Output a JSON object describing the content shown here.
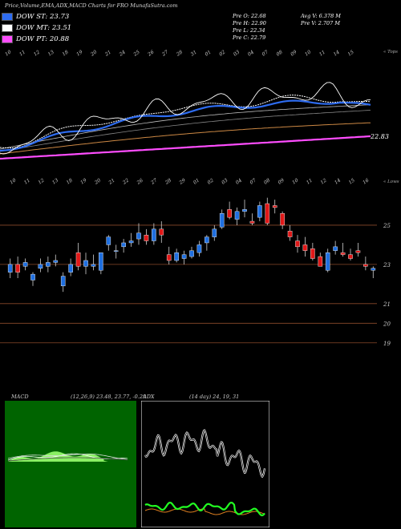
{
  "header": {
    "title": "Price,Volume,EMA,ADX,MACD Charts for FRO",
    "site": "MunafaSutra.com"
  },
  "legend": [
    {
      "label": "DOW ST: 23.73",
      "color": "#2e6cf0"
    },
    {
      "label": "DOW MT: 23.51",
      "color": "#ffffff"
    },
    {
      "label": "DOW PT: 20.88",
      "color": "#ff4dff"
    }
  ],
  "ohlc": {
    "open": "Pre  O: 22.68",
    "high": "Pre  H: 22.90",
    "low": "Pre  L: 22.34",
    "close": "Pre  C: 22.79"
  },
  "volume_info": {
    "avg": "Avg V: 6.378  M",
    "pre": "Pre  V: 2.707 M"
  },
  "top_chart": {
    "date_labels": [
      "10",
      "11",
      "12",
      "13",
      "18",
      "19",
      "20",
      "21",
      "24",
      "25",
      "26",
      "27",
      "28",
      "31",
      "01",
      "02",
      "03",
      "04",
      "07",
      "08",
      "09",
      "10",
      "11",
      "14",
      "15"
    ],
    "corner_label": "« Tops",
    "last_value_label": "22.83",
    "colors": {
      "price": "#ffffff",
      "ema_short": "#2e6cf0",
      "ema_long": "#ff4dff",
      "ema_mid": "#cc8844"
    }
  },
  "chart_data": {
    "type": "candlestick",
    "title": "",
    "corner_label": "« Lows",
    "date_labels": [
      "10",
      "11",
      "12",
      "13",
      "18",
      "19",
      "20",
      "21",
      "22",
      "26",
      "27",
      "28",
      "29",
      "01",
      "02",
      "03",
      "04",
      "07",
      "08",
      "09",
      "10",
      "11",
      "12",
      "14",
      "15",
      "16"
    ],
    "y_ticks": [
      25,
      23,
      21,
      20,
      19
    ],
    "ylim": [
      18.5,
      27
    ],
    "gridlines": [
      25,
      23,
      21,
      20,
      19
    ],
    "candles": [
      {
        "o": 22.6,
        "h": 23.3,
        "l": 22.3,
        "c": 23.0
      },
      {
        "o": 23.0,
        "h": 23.4,
        "l": 22.3,
        "c": 22.6
      },
      {
        "o": 22.9,
        "h": 23.3,
        "l": 22.7,
        "c": 23.1
      },
      {
        "o": 22.2,
        "h": 22.6,
        "l": 21.9,
        "c": 22.5
      },
      {
        "o": 22.8,
        "h": 23.3,
        "l": 22.6,
        "c": 23.0
      },
      {
        "o": 22.9,
        "h": 23.4,
        "l": 22.6,
        "c": 23.1
      },
      {
        "o": 23.1,
        "h": 23.5,
        "l": 22.9,
        "c": 23.2
      },
      {
        "o": 21.9,
        "h": 22.6,
        "l": 21.6,
        "c": 22.4
      },
      {
        "o": 22.6,
        "h": 23.3,
        "l": 22.4,
        "c": 23.0
      },
      {
        "o": 23.6,
        "h": 24.1,
        "l": 22.7,
        "c": 22.9
      },
      {
        "o": 22.9,
        "h": 23.6,
        "l": 22.5,
        "c": 23.2
      },
      {
        "o": 22.9,
        "h": 23.5,
        "l": 22.7,
        "c": 23.0
      },
      {
        "o": 22.7,
        "h": 23.6,
        "l": 22.5,
        "c": 23.6
      },
      {
        "o": 24.0,
        "h": 24.5,
        "l": 23.7,
        "c": 24.4
      },
      {
        "o": 23.7,
        "h": 24.0,
        "l": 23.3,
        "c": 23.7
      },
      {
        "o": 23.9,
        "h": 24.3,
        "l": 23.6,
        "c": 24.1
      },
      {
        "o": 24.1,
        "h": 24.6,
        "l": 23.9,
        "c": 24.2
      },
      {
        "o": 24.3,
        "h": 25.1,
        "l": 24.0,
        "c": 24.6
      },
      {
        "o": 24.5,
        "h": 24.8,
        "l": 24.0,
        "c": 24.2
      },
      {
        "o": 24.2,
        "h": 25.1,
        "l": 24.0,
        "c": 24.8
      },
      {
        "o": 24.8,
        "h": 25.2,
        "l": 24.1,
        "c": 24.5
      },
      {
        "o": 23.5,
        "h": 23.9,
        "l": 23.0,
        "c": 23.2
      },
      {
        "o": 23.2,
        "h": 23.8,
        "l": 23.1,
        "c": 23.6
      },
      {
        "o": 23.3,
        "h": 23.7,
        "l": 23.0,
        "c": 23.5
      },
      {
        "o": 23.4,
        "h": 23.9,
        "l": 23.3,
        "c": 23.7
      },
      {
        "o": 23.6,
        "h": 24.2,
        "l": 23.4,
        "c": 24.0
      },
      {
        "o": 24.1,
        "h": 24.5,
        "l": 23.7,
        "c": 24.4
      },
      {
        "o": 24.4,
        "h": 25.0,
        "l": 24.2,
        "c": 24.8
      },
      {
        "o": 24.9,
        "h": 25.8,
        "l": 24.8,
        "c": 25.6
      },
      {
        "o": 25.8,
        "h": 26.2,
        "l": 25.3,
        "c": 25.4
      },
      {
        "o": 25.3,
        "h": 25.9,
        "l": 25.0,
        "c": 25.7
      },
      {
        "o": 25.7,
        "h": 26.3,
        "l": 25.4,
        "c": 25.8
      },
      {
        "o": 25.2,
        "h": 25.6,
        "l": 25.0,
        "c": 25.1
      },
      {
        "o": 25.4,
        "h": 26.2,
        "l": 25.2,
        "c": 26.0
      },
      {
        "o": 26.1,
        "h": 26.4,
        "l": 25.0,
        "c": 25.1
      },
      {
        "o": 26.0,
        "h": 26.3,
        "l": 25.6,
        "c": 25.9
      },
      {
        "o": 25.6,
        "h": 25.7,
        "l": 24.8,
        "c": 25.0
      },
      {
        "o": 24.7,
        "h": 25.0,
        "l": 24.2,
        "c": 24.4
      },
      {
        "o": 24.2,
        "h": 24.5,
        "l": 23.6,
        "c": 23.9
      },
      {
        "o": 24.0,
        "h": 24.4,
        "l": 23.4,
        "c": 23.7
      },
      {
        "o": 23.8,
        "h": 24.1,
        "l": 23.2,
        "c": 23.3
      },
      {
        "o": 23.4,
        "h": 23.6,
        "l": 22.9,
        "c": 22.9
      },
      {
        "o": 22.7,
        "h": 23.8,
        "l": 22.6,
        "c": 23.6
      },
      {
        "o": 23.7,
        "h": 24.2,
        "l": 23.5,
        "c": 23.9
      },
      {
        "o": 23.6,
        "h": 24.1,
        "l": 23.4,
        "c": 23.5
      },
      {
        "o": 23.5,
        "h": 23.8,
        "l": 23.2,
        "c": 23.3
      },
      {
        "o": 23.7,
        "h": 24.1,
        "l": 23.4,
        "c": 23.6
      },
      {
        "o": 23.0,
        "h": 23.4,
        "l": 22.7,
        "c": 22.9
      },
      {
        "o": 22.7,
        "h": 22.9,
        "l": 22.3,
        "c": 22.8
      }
    ]
  },
  "macd_panel": {
    "label": "MACD",
    "params": "(12,26,9) 23.48, 23.77, -0.29"
  },
  "adx_panel": {
    "label": "ADX",
    "params": "(14 day) 24, 19, 31"
  }
}
